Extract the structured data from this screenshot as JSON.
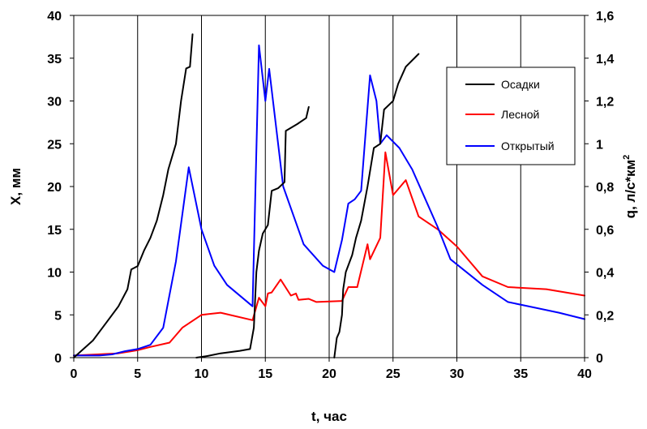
{
  "chart_data": {
    "type": "line",
    "xlabel": "t, час",
    "ylabel_left": "X, мм",
    "ylabel_right": "q, л/с*км",
    "ylabel_right_sup": "2",
    "xlim": [
      0,
      40
    ],
    "ylim_left": [
      0,
      40
    ],
    "ylim_right": [
      0,
      1.6
    ],
    "x_ticks": [
      "0",
      "5",
      "10",
      "15",
      "20",
      "25",
      "30",
      "35",
      "40"
    ],
    "y_left_ticks": [
      "0",
      "5",
      "10",
      "15",
      "20",
      "25",
      "30",
      "35",
      "40"
    ],
    "y_right_ticks": [
      "0",
      "0,2",
      "0,4",
      "0,6",
      "0,8",
      "1",
      "1,2",
      "1,4",
      "1,6"
    ],
    "grid": "vertical",
    "legend_position": "right",
    "series": [
      {
        "name": "Осадки",
        "color": "#000000",
        "axis": "left",
        "segments": [
          [
            [
              0,
              0
            ],
            [
              1.5,
              2
            ],
            [
              2.5,
              4
            ],
            [
              3.5,
              6
            ],
            [
              4.2,
              8
            ],
            [
              4.5,
              10.3
            ],
            [
              5,
              10.7
            ],
            [
              5.5,
              12.5
            ],
            [
              6,
              14
            ],
            [
              6.5,
              16
            ],
            [
              7,
              19
            ],
            [
              7.4,
              22
            ],
            [
              8,
              25
            ],
            [
              8.4,
              30
            ],
            [
              8.8,
              33.8
            ],
            [
              9.1,
              34
            ],
            [
              9.3,
              37.8
            ]
          ],
          [
            [
              9.6,
              0
            ],
            [
              10.5,
              0.2
            ],
            [
              11.5,
              0.5
            ],
            [
              13,
              0.8
            ],
            [
              13.8,
              1
            ],
            [
              14.1,
              3.5
            ],
            [
              14.3,
              10
            ],
            [
              14.5,
              12.5
            ],
            [
              14.8,
              14.5
            ],
            [
              15.2,
              15.5
            ],
            [
              15.5,
              19.5
            ],
            [
              16,
              19.8
            ],
            [
              16.5,
              20.5
            ],
            [
              16.6,
              26.5
            ],
            [
              17.5,
              27.3
            ],
            [
              18.2,
              28
            ],
            [
              18.4,
              29.3
            ]
          ],
          [
            [
              20.4,
              0
            ],
            [
              20.6,
              2.3
            ],
            [
              20.8,
              3
            ],
            [
              21,
              5
            ],
            [
              21.1,
              8
            ],
            [
              21.3,
              10
            ],
            [
              21.8,
              12
            ],
            [
              22.1,
              14
            ],
            [
              22.5,
              16
            ],
            [
              23,
              20
            ],
            [
              23.5,
              24.5
            ],
            [
              24,
              25
            ],
            [
              24.3,
              29
            ],
            [
              25,
              30
            ],
            [
              25.4,
              32
            ],
            [
              26,
              34
            ],
            [
              27,
              35.5
            ]
          ]
        ]
      },
      {
        "name": "Лесной",
        "color": "#ff0000",
        "axis": "right",
        "points": [
          [
            0,
            0.01
          ],
          [
            3.5,
            0.02
          ],
          [
            4.5,
            0.03
          ],
          [
            5,
            0.035
          ],
          [
            6,
            0.05
          ],
          [
            7.5,
            0.07
          ],
          [
            8.5,
            0.14
          ],
          [
            10,
            0.2
          ],
          [
            11.5,
            0.21
          ],
          [
            14,
            0.175
          ],
          [
            14.5,
            0.28
          ],
          [
            15,
            0.24
          ],
          [
            15.2,
            0.3
          ],
          [
            15.5,
            0.305
          ],
          [
            16.2,
            0.365
          ],
          [
            17,
            0.29
          ],
          [
            17.4,
            0.3
          ],
          [
            17.6,
            0.27
          ],
          [
            18.4,
            0.275
          ],
          [
            19,
            0.26
          ],
          [
            21,
            0.265
          ],
          [
            21.5,
            0.33
          ],
          [
            22.2,
            0.33
          ],
          [
            23,
            0.53
          ],
          [
            23.2,
            0.46
          ],
          [
            24,
            0.56
          ],
          [
            24.4,
            0.96
          ],
          [
            25,
            0.76
          ],
          [
            26,
            0.83
          ],
          [
            27,
            0.66
          ],
          [
            28.5,
            0.6
          ],
          [
            30,
            0.52
          ],
          [
            32,
            0.38
          ],
          [
            34,
            0.33
          ],
          [
            37,
            0.32
          ],
          [
            40,
            0.29
          ]
        ]
      },
      {
        "name": "Открытый",
        "color": "#0000ff",
        "axis": "right",
        "points": [
          [
            0,
            0.01
          ],
          [
            2,
            0.01
          ],
          [
            3,
            0.015
          ],
          [
            4,
            0.03
          ],
          [
            5,
            0.04
          ],
          [
            6,
            0.06
          ],
          [
            7,
            0.14
          ],
          [
            8,
            0.45
          ],
          [
            9,
            0.89
          ],
          [
            10,
            0.6
          ],
          [
            11,
            0.43
          ],
          [
            12,
            0.34
          ],
          [
            14,
            0.24
          ],
          [
            14.5,
            1.46
          ],
          [
            15,
            1.2
          ],
          [
            15.3,
            1.35
          ],
          [
            16.4,
            0.8
          ],
          [
            18,
            0.53
          ],
          [
            19.5,
            0.43
          ],
          [
            20.4,
            0.4
          ],
          [
            21,
            0.55
          ],
          [
            21.5,
            0.72
          ],
          [
            22,
            0.74
          ],
          [
            22.5,
            0.78
          ],
          [
            23.2,
            1.32
          ],
          [
            23.7,
            1.2
          ],
          [
            24,
            1.0
          ],
          [
            24.5,
            1.04
          ],
          [
            25.5,
            0.98
          ],
          [
            26.5,
            0.88
          ],
          [
            28.5,
            0.61
          ],
          [
            29.5,
            0.46
          ],
          [
            32,
            0.34
          ],
          [
            34,
            0.26
          ],
          [
            38,
            0.21
          ],
          [
            40,
            0.18
          ]
        ]
      }
    ]
  }
}
